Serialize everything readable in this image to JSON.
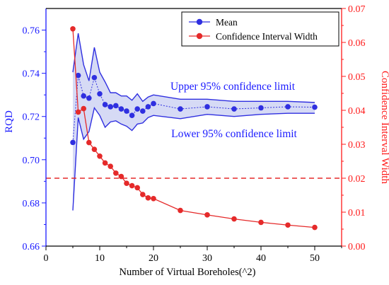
{
  "colors": {
    "left_axis": "#1a1aff",
    "right_axis": "#ff1a1a",
    "mean": "#2f2fe0",
    "mean_fill": "#c8cdf2",
    "ci": "#e52a2a",
    "axis_black": "#000000"
  },
  "chart_data": {
    "type": "line",
    "title": "",
    "xlabel": "Number of Virtual Boreholes(^2)",
    "ylabel_left": "RQD",
    "ylabel_right": "Confidence Interval Width",
    "xlim": [
      0,
      55
    ],
    "ylim_left": [
      0.66,
      0.77
    ],
    "ylim_right": [
      0.0,
      0.07
    ],
    "x_ticks": [
      0,
      10,
      20,
      30,
      40,
      50
    ],
    "y_left_ticks": [
      0.66,
      0.68,
      0.7,
      0.72,
      0.74,
      0.76
    ],
    "y_right_ticks": [
      0.0,
      0.01,
      0.02,
      0.03,
      0.04,
      0.05,
      0.06,
      0.07
    ],
    "x_tick_labels": [
      "0",
      "10",
      "20",
      "30",
      "40",
      "50"
    ],
    "y_left_tick_labels": [
      "0.66",
      "0.68",
      "0.70",
      "0.72",
      "0.74",
      "0.76"
    ],
    "y_right_tick_labels": [
      "0.00",
      "0.01",
      "0.02",
      "0.03",
      "0.04",
      "0.05",
      "0.06",
      "0.07"
    ],
    "x": [
      5,
      6,
      7,
      8,
      9,
      10,
      11,
      12,
      13,
      14,
      15,
      16,
      17,
      18,
      19,
      20,
      25,
      30,
      35,
      40,
      45,
      50
    ],
    "series": [
      {
        "name": "Mean",
        "axis": "left",
        "values": [
          0.708,
          0.739,
          0.7295,
          0.7285,
          0.738,
          0.7305,
          0.7255,
          0.7245,
          0.725,
          0.7235,
          0.7225,
          0.7205,
          0.7235,
          0.7225,
          0.7245,
          0.726,
          0.7235,
          0.7245,
          0.7235,
          0.724,
          0.7245,
          0.7243
        ]
      },
      {
        "name": "Confidence Interval Width",
        "axis": "right",
        "values": [
          0.064,
          0.0395,
          0.0405,
          0.0305,
          0.0285,
          0.0265,
          0.0245,
          0.0235,
          0.0215,
          0.0205,
          0.0185,
          0.0178,
          0.0172,
          0.0152,
          0.0142,
          0.014,
          0.0105,
          0.0092,
          0.008,
          0.007,
          0.0062,
          0.0055
        ]
      }
    ],
    "upper_limit": [
      0.7405,
      0.7585,
      0.744,
      0.7365,
      0.752,
      0.7405,
      0.736,
      0.731,
      0.731,
      0.7295,
      0.7295,
      0.7275,
      0.7305,
      0.727,
      0.729,
      0.73,
      0.728,
      0.728,
      0.727,
      0.727,
      0.727,
      0.7265
    ],
    "lower_limit": [
      0.6765,
      0.7195,
      0.7095,
      0.713,
      0.724,
      0.7205,
      0.715,
      0.7175,
      0.718,
      0.7165,
      0.7155,
      0.7135,
      0.7165,
      0.717,
      0.7195,
      0.7205,
      0.719,
      0.721,
      0.72,
      0.721,
      0.7215,
      0.7215
    ],
    "threshold": 0.02,
    "legend_location": "top-right",
    "annotations": [
      "Upper 95% confidence limit",
      "Lower 95% confidence limit"
    ]
  }
}
